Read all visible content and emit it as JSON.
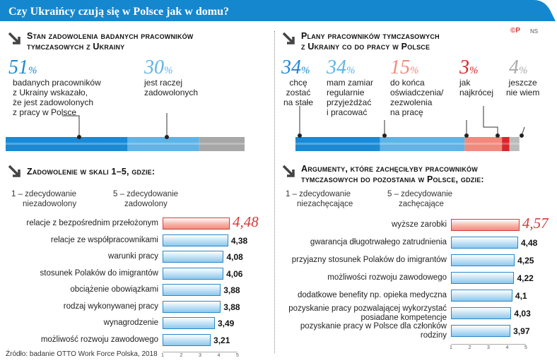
{
  "title": "Czy Ukraińcy czują się w Polsce jak w domu?",
  "logo": {
    "mark": "©P",
    "sub": "NS"
  },
  "colors": {
    "banner": "#1587cf",
    "blue_dark": "#1a8ad4",
    "blue_mid": "#5fb3e6",
    "gray": "#a7a7a7",
    "salmon": "#f08a7c",
    "red": "#d7262c",
    "gray_light": "#bbbbbb"
  },
  "satisfaction": {
    "title_line1": "Stan zadowolenia badanych pracowników",
    "title_line2": "tymczasowych z Ukrainy",
    "items": [
      {
        "value": "51",
        "unit": "%",
        "text1": "badanych pracowników",
        "text2": "z Ukrainy wskazało,",
        "text3": "że jest zadowolonych",
        "text4": "z pracy w Polsce"
      },
      {
        "value": "30",
        "unit": "%",
        "text1": "jest raczej",
        "text2": "zadowolonych"
      }
    ]
  },
  "plans": {
    "title_line1": "Plany pracowników tymczasowych",
    "title_line2": "z Ukrainy co do pracy w Polsce",
    "items": [
      {
        "value": "34",
        "unit": "%",
        "text1": "chcę",
        "text2": "zostać",
        "text3": "na stałe"
      },
      {
        "value": "34",
        "unit": "%",
        "text1": "mam zamiar",
        "text2": "regularnie",
        "text3": "przyjeżdżać",
        "text4": "i pracować"
      },
      {
        "value": "15",
        "unit": "%",
        "text1": "do końca",
        "text2": "oświadczenia/",
        "text3": "zezwolenia",
        "text4": "na pracę"
      },
      {
        "value": "3",
        "unit": "%",
        "text1": "jak",
        "text2": "najkrócej"
      },
      {
        "value": "4",
        "unit": "%",
        "text1": "jeszcze",
        "text2": "nie wiem"
      }
    ]
  },
  "scale_left": {
    "title": "Zadowolenie w skali 1–5, gdzie:",
    "low": "1 – zdecydowanie",
    "low2": "niezadowolony",
    "high": "5 – zdecydowanie",
    "high2": "zadowolony"
  },
  "scale_right": {
    "title_line1": "Argumenty, które zachęciłyby pracowników",
    "title_line2": "tymczasowych do pozostania w Polsce, gdzie:",
    "low": "1 – zdecydowanie",
    "low2": "niezachęcające",
    "high": "5 – zdecydowanie",
    "high2": "zachęcające"
  },
  "source": "Źródło: badanie OTTO Work Force Polska, 2018",
  "chart_data": [
    {
      "type": "bar",
      "title": "Stan zadowolenia badanych pracowników tymczasowych z Ukrainy",
      "stacked": true,
      "unit": "%",
      "categories": [
        "badanych pracowników z Ukrainy wskazało, że jest zadowolonych z pracy w Polsce",
        "jest raczej zadowolonych"
      ],
      "values": [
        51,
        30
      ],
      "remainder_gray": true
    },
    {
      "type": "bar",
      "title": "Plany pracowników tymczasowych z Ukrainy co do pracy w Polsce",
      "stacked": true,
      "unit": "%",
      "categories": [
        "chcę zostać na stałe",
        "mam zamiar regularnie przyjeżdżać i pracować",
        "do końca oświadczenia/ zezwolenia na pracę",
        "jak najkrócej",
        "jeszcze nie wiem"
      ],
      "values": [
        34,
        34,
        15,
        3,
        4
      ]
    },
    {
      "type": "bar",
      "orientation": "horizontal",
      "title": "Zadowolenie w skali 1–5, gdzie:",
      "categories": [
        "relacje z bezpośrednim przełożonym",
        "relacje ze współpracownikami",
        "warunki pracy",
        "stosunek Polaków do imigrantów",
        "obciążenie obowiązkami",
        "rodzaj wykonywanej pracy",
        "wynagrodzenie",
        "możliwość rozwoju zawodowego"
      ],
      "values": [
        4.48,
        4.38,
        4.08,
        4.06,
        3.88,
        3.88,
        3.49,
        3.21
      ],
      "labels": [
        "4,48",
        "4,38",
        "4,08",
        "4,06",
        "3,88",
        "3,88",
        "3,49",
        "3,21"
      ],
      "xlim": [
        1,
        5
      ],
      "ticks": [
        "1",
        "2",
        "3",
        "4",
        "5"
      ]
    },
    {
      "type": "bar",
      "orientation": "horizontal",
      "title": "Argumenty, które zachęciłyby pracowników tymczasowych do pozostania w Polsce, gdzie:",
      "categories": [
        "wyższe zarobki",
        "gwarancja długotrwałego zatrudnienia",
        "przyjazny stosunek Polaków do imigrantów",
        "możliwości rozwoju zawodowego",
        "dodatkowe benefity np. opieka medyczna",
        "pozyskanie pracy pozwalającej wykorzystać posiadane kompetencje",
        "pozyskanie pracy w Polsce dla członków rodziny"
      ],
      "values": [
        4.57,
        4.48,
        4.25,
        4.22,
        4.1,
        4.03,
        3.97
      ],
      "labels": [
        "4,57",
        "4,48",
        "4,25",
        "4,22",
        "4,1",
        "4,03",
        "3,97"
      ],
      "xlim": [
        1,
        5
      ],
      "ticks": [
        "1",
        "2",
        "3",
        "4",
        "5"
      ]
    }
  ]
}
